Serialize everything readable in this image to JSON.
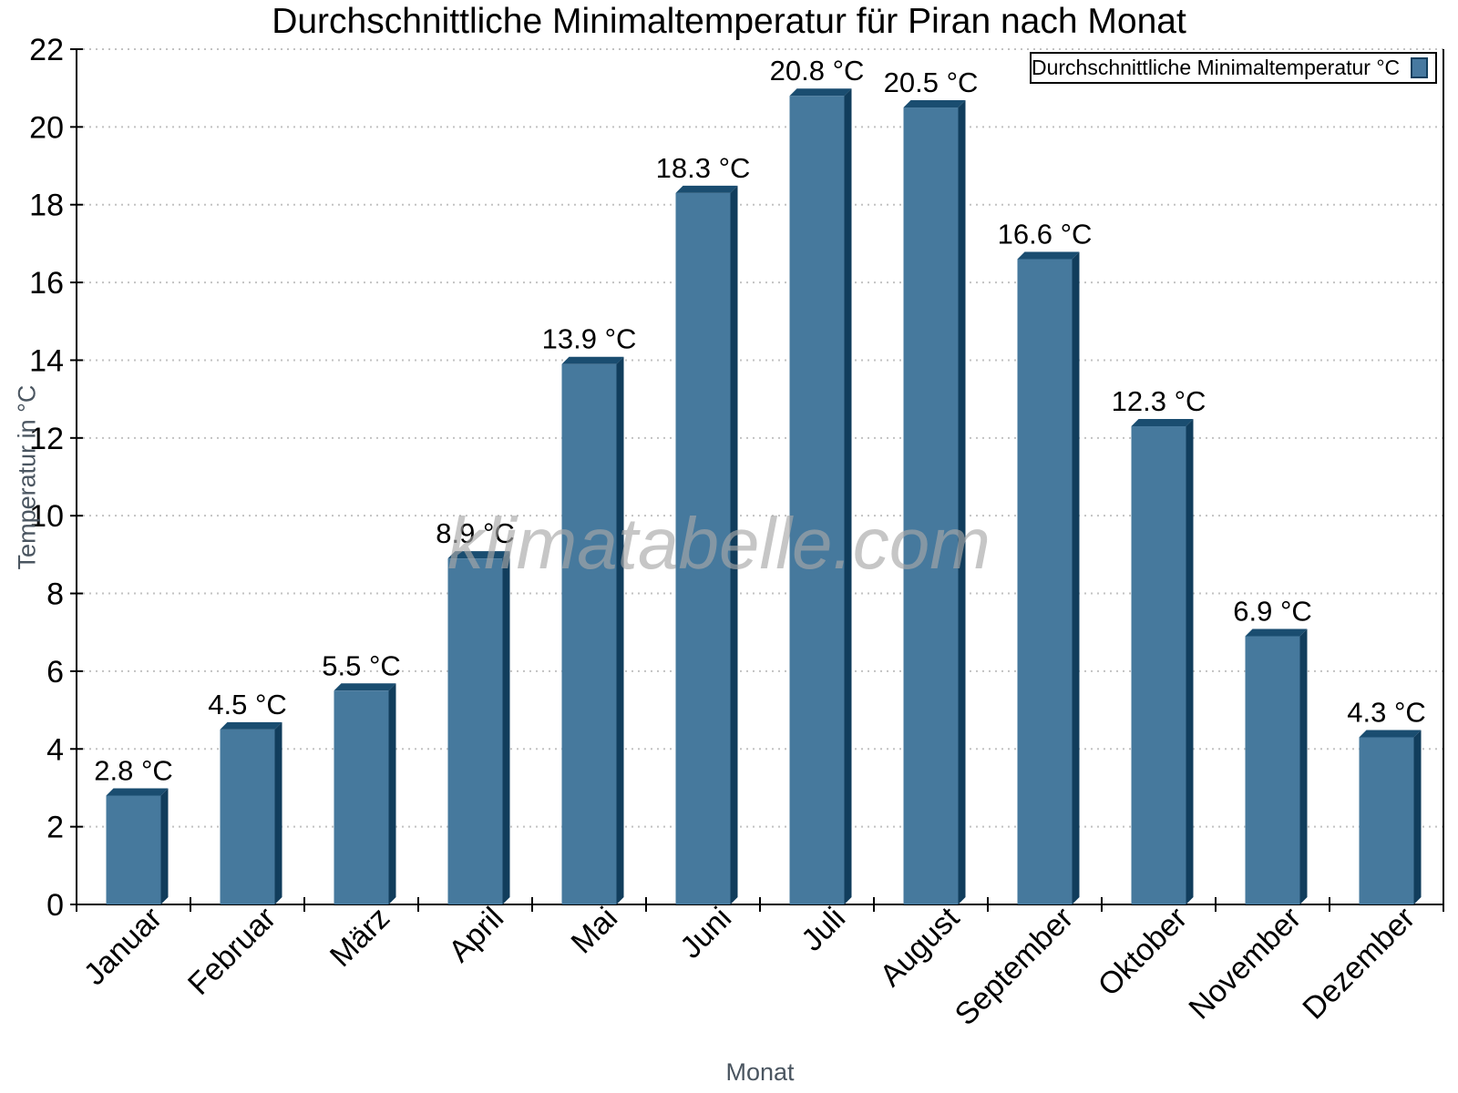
{
  "title": "Durchschnittliche Minimaltemperatur für Piran nach Monat",
  "legend": {
    "label": "Durchschnittliche Minimaltemperatur °C"
  },
  "watermark": {
    "text": "klimatabelle.com"
  },
  "chart_data": {
    "type": "bar",
    "title": "Durchschnittliche Minimaltemperatur für Piran nach Monat",
    "categories": [
      "Januar",
      "Februar",
      "März",
      "April",
      "Mai",
      "Juni",
      "Juli",
      "August",
      "September",
      "Oktober",
      "November",
      "Dezember"
    ],
    "values": [
      2.8,
      4.5,
      5.5,
      8.9,
      13.9,
      18.3,
      20.8,
      20.5,
      16.6,
      12.3,
      6.9,
      4.3
    ],
    "value_suffix": " °C",
    "xlabel": "Monat",
    "ylabel": "Temperatur in °C",
    "ylim": [
      0,
      22
    ],
    "ytick_step": 2,
    "grid": "horizontal-dotted",
    "legend_position": "top-right",
    "colors": {
      "bar_face": "#46799d",
      "bar_top": "#1a4d70",
      "bar_side": "#113d5c",
      "axis": "#000000",
      "gridline": "#c2c2c2",
      "axis_title": "#4a5560",
      "label_text": "#000000"
    }
  }
}
